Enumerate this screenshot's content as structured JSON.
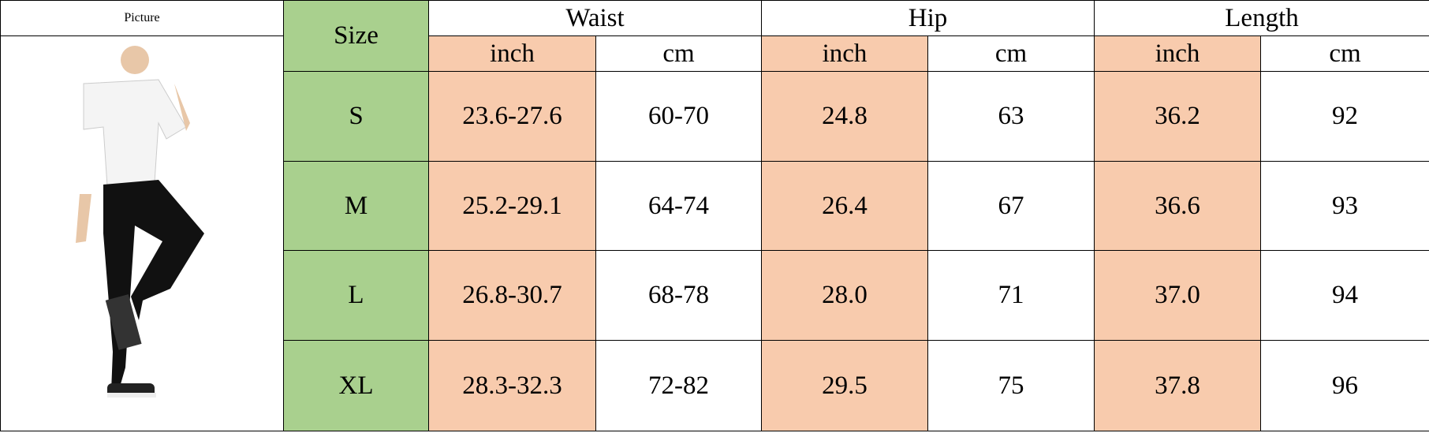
{
  "header": {
    "picture": "Picture",
    "size": "Size",
    "groups": [
      {
        "name": "Waist",
        "units": [
          "inch",
          "cm"
        ]
      },
      {
        "name": "Hip",
        "units": [
          "inch",
          "cm"
        ]
      },
      {
        "name": "Length",
        "units": [
          "inch",
          "cm"
        ]
      }
    ]
  },
  "rows": [
    [
      "S",
      "23.6-27.6",
      "60-70",
      "24.8",
      "63",
      "36.2",
      "92"
    ],
    [
      "M",
      "25.2-29.1",
      "64-74",
      "26.4",
      "67",
      "36.6",
      "93"
    ],
    [
      "L",
      "26.8-30.7",
      "68-78",
      "28.0",
      "71",
      "37.0",
      "94"
    ],
    [
      "XL",
      "28.3-32.3",
      "72-82",
      "29.5",
      "75",
      "37.8",
      "96"
    ]
  ]
}
